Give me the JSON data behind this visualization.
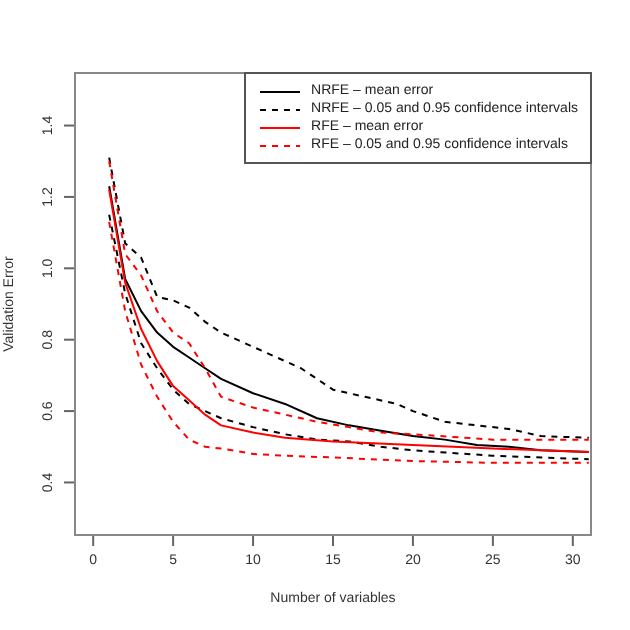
{
  "chart_data": {
    "type": "line",
    "xlabel": "Number of variables",
    "ylabel": "Validation Error",
    "xlim": [
      -1.2,
      31.2
    ],
    "ylim": [
      0.25,
      1.55
    ],
    "xticks": [
      0,
      5,
      10,
      15,
      20,
      25,
      30
    ],
    "yticks": [
      0.4,
      0.6,
      0.8,
      {
        "value": 1,
        "label": "1.0"
      },
      1.2,
      1.4
    ],
    "legend": "top right",
    "marker": "none",
    "series": [
      {
        "name": "NRFE – mean error",
        "color": "#000000",
        "line_style": "solid",
        "x": [
          1,
          2,
          3,
          4,
          5,
          6,
          7,
          8,
          10,
          12,
          14,
          16,
          18,
          20,
          22,
          24,
          26,
          28,
          31
        ],
        "values": [
          1.23,
          0.97,
          0.88,
          0.82,
          0.78,
          0.75,
          0.72,
          0.69,
          0.65,
          0.62,
          0.58,
          0.56,
          0.545,
          0.53,
          0.52,
          0.505,
          0.5,
          0.49,
          0.485
        ]
      },
      {
        "name": "NRFE – 0.05 and 0.95 confidence intervals",
        "color": "#000000",
        "line_style": "dashed",
        "x": [
          1,
          2,
          3,
          4,
          5,
          6,
          7,
          8,
          10,
          12,
          13,
          14,
          15,
          17,
          19,
          20,
          22,
          24,
          26,
          28,
          31
        ],
        "values": [
          1.31,
          1.07,
          1.03,
          0.92,
          0.91,
          0.89,
          0.85,
          0.82,
          0.78,
          0.74,
          0.72,
          0.69,
          0.66,
          0.64,
          0.62,
          0.6,
          0.57,
          0.56,
          0.55,
          0.53,
          0.525
        ]
      },
      {
        "color": "#000000",
        "line_style": "dashed",
        "x": [
          1,
          2,
          3,
          4,
          5,
          6,
          7,
          8,
          10,
          12,
          14,
          16,
          18,
          20,
          25,
          31
        ],
        "values": [
          1.15,
          0.93,
          0.79,
          0.72,
          0.66,
          0.62,
          0.6,
          0.58,
          0.555,
          0.535,
          0.52,
          0.515,
          0.5,
          0.49,
          0.475,
          0.465
        ]
      },
      {
        "name": "RFE – mean error",
        "color": "#ff0000",
        "line_style": "solid",
        "x": [
          1,
          2,
          3,
          4,
          5,
          6,
          7,
          8,
          10,
          12,
          15,
          20,
          25,
          31
        ],
        "values": [
          1.22,
          0.96,
          0.83,
          0.74,
          0.67,
          0.63,
          0.59,
          0.56,
          0.54,
          0.525,
          0.515,
          0.505,
          0.495,
          0.485
        ]
      },
      {
        "name": "RFE – 0.05 and 0.95 confidence intervals",
        "color": "#ff0000",
        "line_style": "dashed",
        "x": [
          1,
          2,
          3,
          4,
          5,
          6,
          7,
          8,
          10,
          12,
          14,
          16,
          18,
          20,
          25,
          31
        ],
        "values": [
          1.3,
          1.04,
          0.98,
          0.88,
          0.82,
          0.79,
          0.72,
          0.64,
          0.61,
          0.59,
          0.57,
          0.555,
          0.54,
          0.535,
          0.52,
          0.52
        ]
      },
      {
        "color": "#ff0000",
        "line_style": "dashed",
        "x": [
          1,
          2,
          3,
          4,
          5,
          6,
          7,
          8,
          10,
          12,
          15,
          20,
          25,
          31
        ],
        "values": [
          1.13,
          0.88,
          0.73,
          0.64,
          0.57,
          0.52,
          0.5,
          0.495,
          0.48,
          0.475,
          0.47,
          0.46,
          0.455,
          0.455
        ]
      }
    ]
  }
}
